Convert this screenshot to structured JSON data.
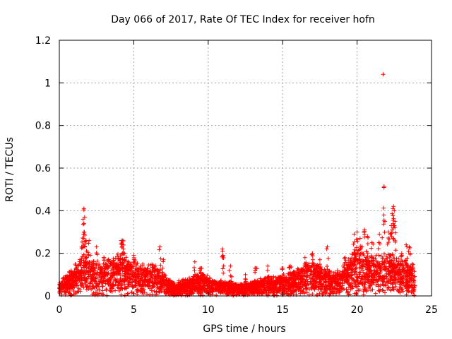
{
  "chart_data": {
    "type": "scatter",
    "title": "Day 066 of 2017, Rate Of TEC Index for receiver hofn",
    "xlabel": "GPS time / hours",
    "ylabel": "ROTI / TECUs",
    "xlim": [
      0,
      25
    ],
    "ylim": [
      0,
      1.2
    ],
    "xticks": [
      0,
      5,
      10,
      15,
      20,
      25
    ],
    "yticks": [
      0,
      0.2,
      0.4,
      0.6,
      0.8,
      1,
      1.2
    ],
    "xtick_labels": [
      "0",
      "5",
      "10",
      "15",
      "20",
      "25"
    ],
    "ytick_labels": [
      "0",
      "0.2",
      "0.4",
      "0.6",
      "0.8",
      "1",
      "1.2"
    ],
    "grid": true,
    "marker": "+",
    "series_color": "#ff0000",
    "data_range_hours": [
      0,
      23.9
    ],
    "envelope": [
      [
        0.0,
        0.06
      ],
      [
        0.5,
        0.09
      ],
      [
        1.0,
        0.12
      ],
      [
        1.5,
        0.16
      ],
      [
        2.0,
        0.17
      ],
      [
        2.5,
        0.14
      ],
      [
        3.0,
        0.14
      ],
      [
        3.5,
        0.16
      ],
      [
        4.0,
        0.17
      ],
      [
        4.5,
        0.16
      ],
      [
        5.0,
        0.15
      ],
      [
        5.5,
        0.13
      ],
      [
        6.0,
        0.13
      ],
      [
        6.5,
        0.13
      ],
      [
        7.0,
        0.09
      ],
      [
        7.5,
        0.06
      ],
      [
        8.0,
        0.06
      ],
      [
        8.5,
        0.07
      ],
      [
        9.0,
        0.08
      ],
      [
        9.5,
        0.1
      ],
      [
        10.0,
        0.08
      ],
      [
        10.5,
        0.07
      ],
      [
        11.0,
        0.06
      ],
      [
        11.5,
        0.06
      ],
      [
        12.0,
        0.05
      ],
      [
        12.5,
        0.05
      ],
      [
        13.0,
        0.06
      ],
      [
        13.5,
        0.07
      ],
      [
        14.0,
        0.08
      ],
      [
        14.5,
        0.08
      ],
      [
        15.0,
        0.09
      ],
      [
        15.5,
        0.1
      ],
      [
        16.0,
        0.11
      ],
      [
        16.5,
        0.13
      ],
      [
        17.0,
        0.14
      ],
      [
        17.5,
        0.12
      ],
      [
        18.0,
        0.11
      ],
      [
        18.5,
        0.1
      ],
      [
        19.0,
        0.12
      ],
      [
        19.5,
        0.16
      ],
      [
        20.0,
        0.2
      ],
      [
        20.5,
        0.19
      ],
      [
        21.0,
        0.16
      ],
      [
        21.5,
        0.17
      ],
      [
        22.0,
        0.19
      ],
      [
        22.5,
        0.17
      ],
      [
        23.0,
        0.15
      ],
      [
        23.5,
        0.14
      ],
      [
        23.9,
        0.1
      ]
    ],
    "peaks": [
      {
        "x": 1.65,
        "y": 0.41
      },
      {
        "x": 1.7,
        "y": 0.37
      },
      {
        "x": 1.6,
        "y": 0.36
      },
      {
        "x": 1.68,
        "y": 0.3
      },
      {
        "x": 1.5,
        "y": 0.23
      },
      {
        "x": 1.8,
        "y": 0.26
      },
      {
        "x": 2.0,
        "y": 0.26
      },
      {
        "x": 2.5,
        "y": 0.23
      },
      {
        "x": 3.0,
        "y": 0.18
      },
      {
        "x": 4.15,
        "y": 0.26
      },
      {
        "x": 4.25,
        "y": 0.26
      },
      {
        "x": 4.3,
        "y": 0.22
      },
      {
        "x": 5.0,
        "y": 0.19
      },
      {
        "x": 6.75,
        "y": 0.23
      },
      {
        "x": 7.0,
        "y": 0.17
      },
      {
        "x": 9.1,
        "y": 0.16
      },
      {
        "x": 9.5,
        "y": 0.13
      },
      {
        "x": 10.95,
        "y": 0.22
      },
      {
        "x": 11.0,
        "y": 0.19
      },
      {
        "x": 11.5,
        "y": 0.14
      },
      {
        "x": 12.5,
        "y": 0.1
      },
      {
        "x": 13.2,
        "y": 0.13
      },
      {
        "x": 14.0,
        "y": 0.14
      },
      {
        "x": 15.0,
        "y": 0.13
      },
      {
        "x": 15.5,
        "y": 0.14
      },
      {
        "x": 16.5,
        "y": 0.18
      },
      {
        "x": 17.0,
        "y": 0.2
      },
      {
        "x": 17.5,
        "y": 0.17
      },
      {
        "x": 18.0,
        "y": 0.23
      },
      {
        "x": 19.2,
        "y": 0.18
      },
      {
        "x": 19.8,
        "y": 0.29
      },
      {
        "x": 20.0,
        "y": 0.3
      },
      {
        "x": 20.2,
        "y": 0.27
      },
      {
        "x": 20.5,
        "y": 0.31
      },
      {
        "x": 20.7,
        "y": 0.28
      },
      {
        "x": 21.0,
        "y": 0.25
      },
      {
        "x": 21.5,
        "y": 0.29
      },
      {
        "x": 21.75,
        "y": 1.04
      },
      {
        "x": 21.8,
        "y": 0.38
      },
      {
        "x": 22.1,
        "y": 0.3
      },
      {
        "x": 22.3,
        "y": 0.33
      },
      {
        "x": 22.4,
        "y": 0.41
      },
      {
        "x": 22.45,
        "y": 0.42
      },
      {
        "x": 22.5,
        "y": 0.4
      },
      {
        "x": 22.55,
        "y": 0.35
      },
      {
        "x": 23.0,
        "y": 0.2
      },
      {
        "x": 23.3,
        "y": 0.24
      },
      {
        "x": 23.5,
        "y": 0.23
      },
      {
        "x": 23.7,
        "y": 0.15
      }
    ]
  }
}
